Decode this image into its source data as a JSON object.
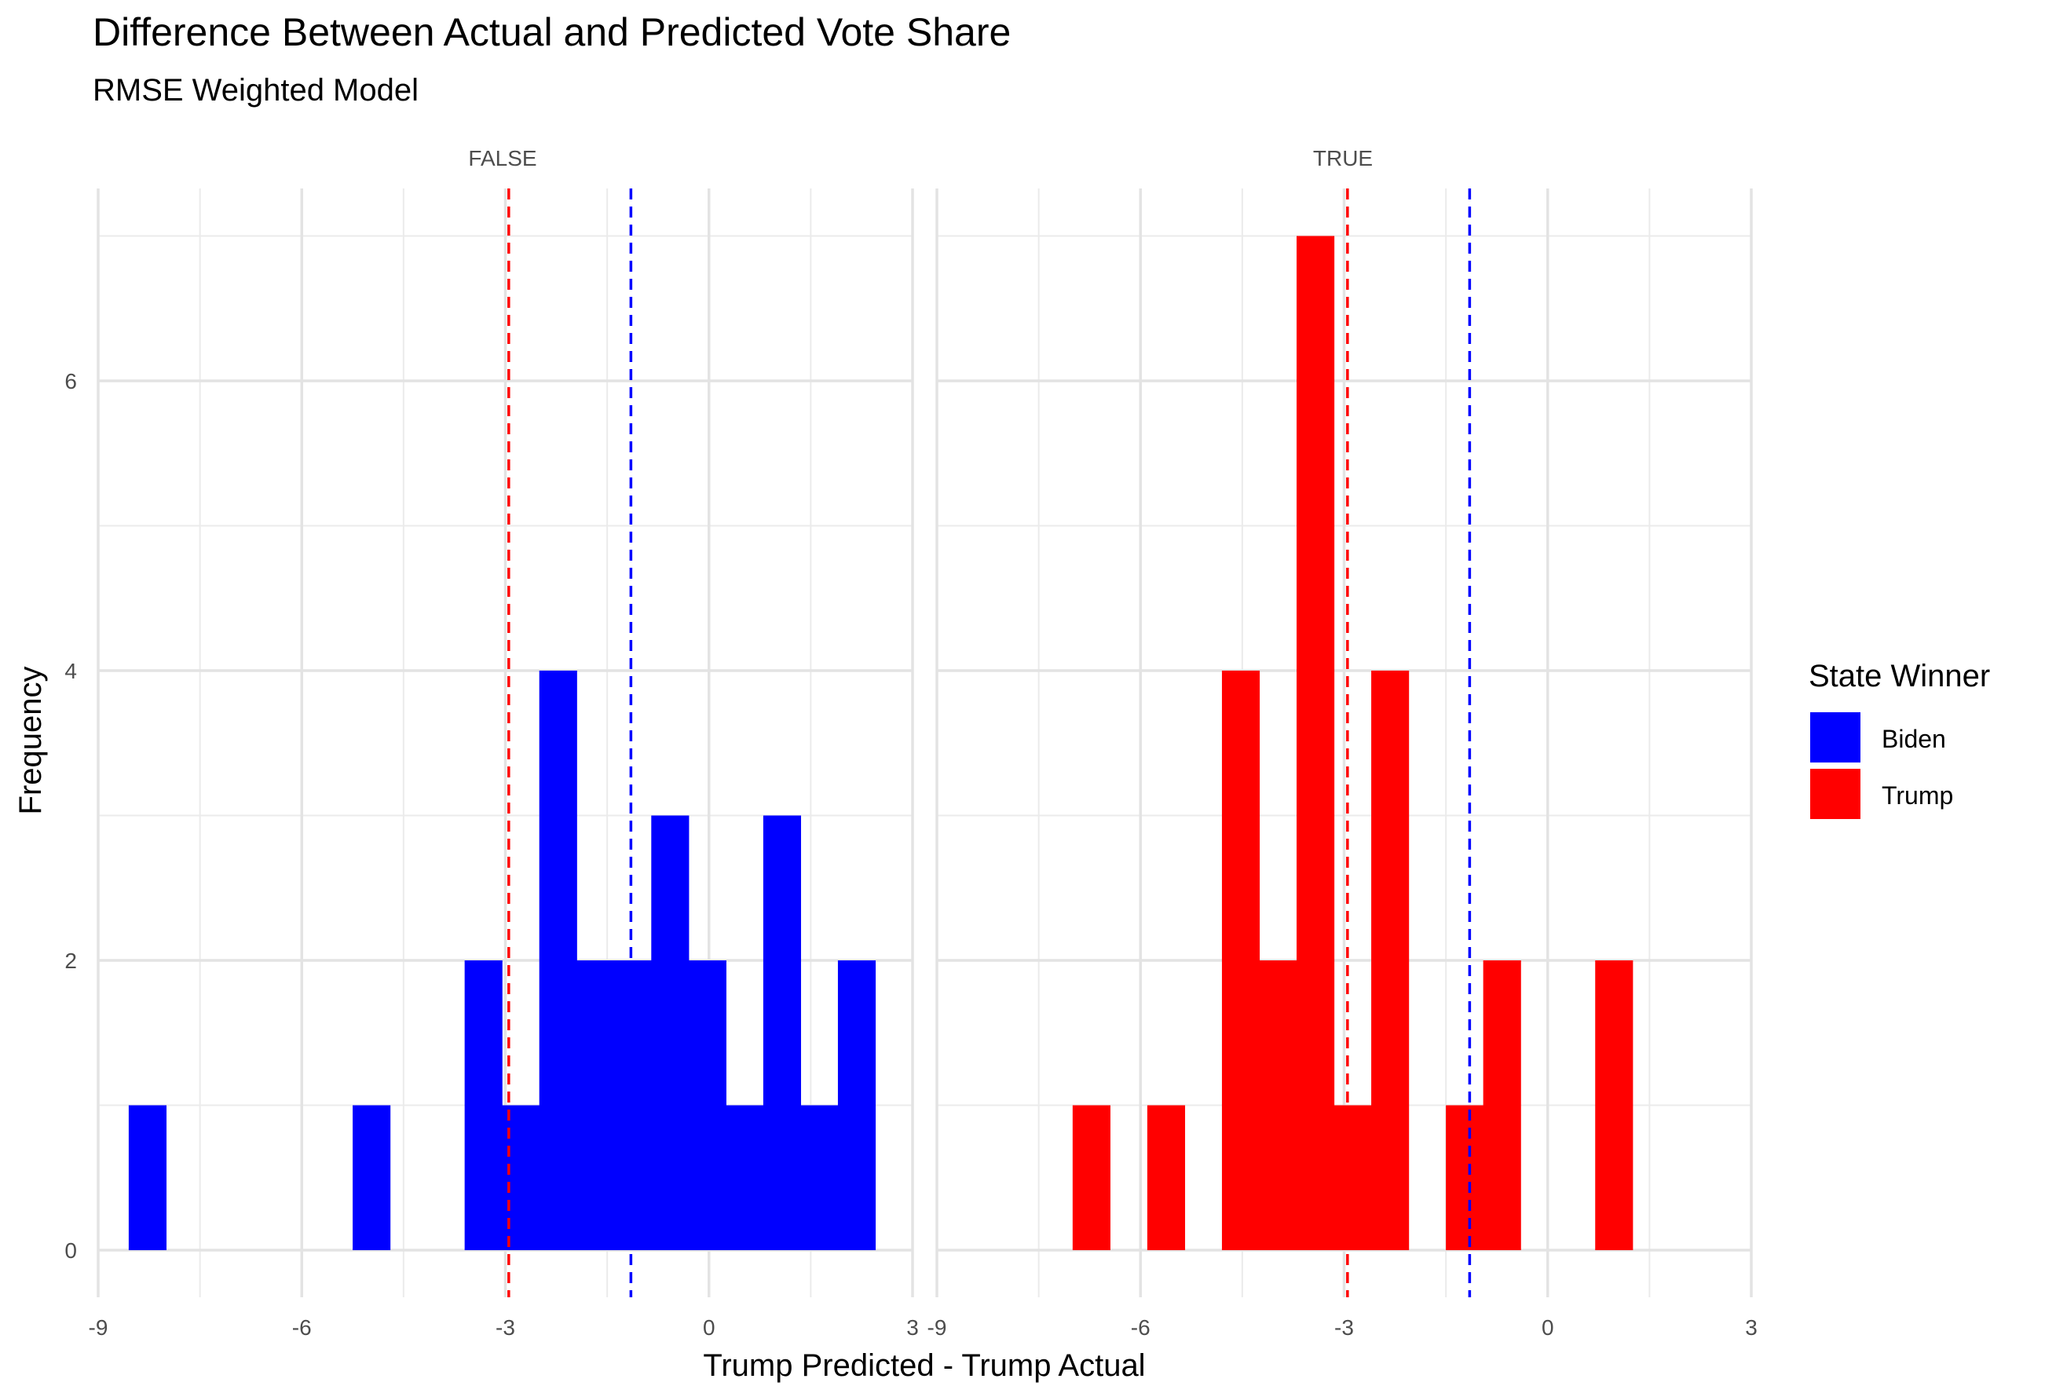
{
  "chart_data": {
    "type": "bar",
    "title": "Difference Between Actual and Predicted Vote Share",
    "subtitle": "RMSE Weighted Model",
    "xlabel": "Trump Predicted - Trump Actual",
    "ylabel": "Frequency",
    "xlim": [
      -9,
      3
    ],
    "ylim": [
      0,
      7
    ],
    "x_ticks": [
      -9,
      -6,
      -3,
      0,
      3
    ],
    "x_tick_labels": [
      "-9",
      "-6",
      "-3",
      "0",
      "3"
    ],
    "y_ticks": [
      0,
      2,
      4,
      6
    ],
    "y_tick_labels": [
      "0",
      "2",
      "4",
      "6"
    ],
    "grid": true,
    "bin_width": 0.55,
    "reference_lines": [
      {
        "x": -2.95,
        "color": "#ff0000",
        "style": "dashed"
      },
      {
        "x": -1.15,
        "color": "#0000ff",
        "style": "dashed"
      }
    ],
    "facets": [
      {
        "label": "FALSE",
        "series_name": "Biden",
        "color": "#0000ff",
        "bins": [
          {
            "x0": -8.55,
            "count": 1
          },
          {
            "x0": -5.25,
            "count": 1
          },
          {
            "x0": -3.6,
            "count": 2
          },
          {
            "x0": -3.05,
            "count": 1
          },
          {
            "x0": -2.5,
            "count": 4
          },
          {
            "x0": -1.95,
            "count": 2
          },
          {
            "x0": -1.4,
            "count": 2
          },
          {
            "x0": -0.85,
            "count": 3
          },
          {
            "x0": -0.3,
            "count": 2
          },
          {
            "x0": 0.25,
            "count": 1
          },
          {
            "x0": 0.8,
            "count": 3
          },
          {
            "x0": 1.35,
            "count": 1
          },
          {
            "x0": 1.9,
            "count": 2
          }
        ]
      },
      {
        "label": "TRUE",
        "series_name": "Trump",
        "color": "#ff0000",
        "bins": [
          {
            "x0": -7.0,
            "count": 1
          },
          {
            "x0": -5.9,
            "count": 1
          },
          {
            "x0": -4.8,
            "count": 4
          },
          {
            "x0": -4.25,
            "count": 2
          },
          {
            "x0": -3.7,
            "count": 7
          },
          {
            "x0": -3.15,
            "count": 1
          },
          {
            "x0": -2.6,
            "count": 4
          },
          {
            "x0": -1.5,
            "count": 1
          },
          {
            "x0": -0.95,
            "count": 2
          },
          {
            "x0": 0.7,
            "count": 2
          }
        ]
      }
    ],
    "legend": {
      "title": "State Winner",
      "placement": "right",
      "entries": [
        {
          "label": "Biden",
          "color": "#0000ff"
        },
        {
          "label": "Trump",
          "color": "#ff0000"
        }
      ]
    }
  }
}
